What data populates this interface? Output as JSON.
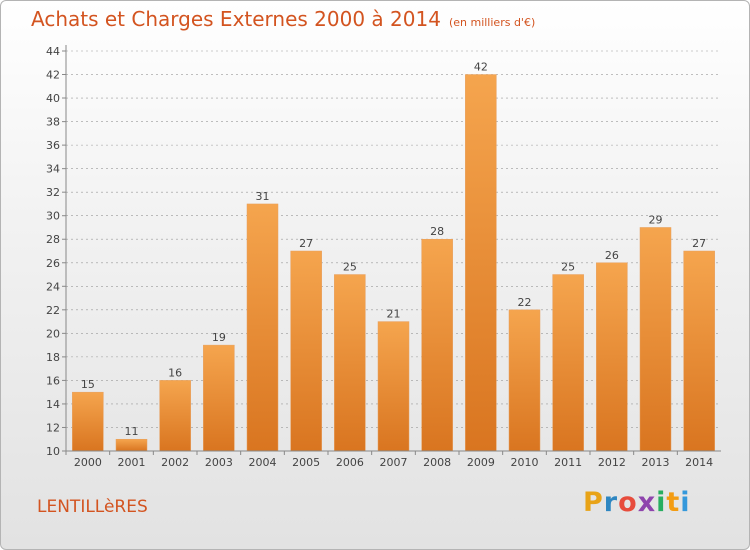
{
  "header": {
    "title": "Achats et Charges Externes 2000 à 2014",
    "subtitle": "(en milliers d'€)"
  },
  "footer": {
    "commune": "LENTILLèRES",
    "logo_letters": [
      "P",
      "r",
      "o",
      "x",
      "i",
      "t",
      "i"
    ],
    "logo_colors": [
      "#e8a317",
      "#2e86c1",
      "#e74c3c",
      "#8e44ad",
      "#27ae60",
      "#f39c12",
      "#3498db"
    ]
  },
  "colors": {
    "title": "#d35420",
    "bar_light": "#f5a54e",
    "bar_dark": "#d97520",
    "axis": "#888888",
    "grid": "#999999"
  },
  "chart_data": {
    "type": "bar",
    "categories": [
      "2000",
      "2001",
      "2002",
      "2003",
      "2004",
      "2005",
      "2006",
      "2007",
      "2008",
      "2009",
      "2010",
      "2011",
      "2012",
      "2013",
      "2014"
    ],
    "values": [
      15,
      11,
      16,
      19,
      31,
      27,
      25,
      21,
      28,
      42,
      22,
      25,
      26,
      29,
      27
    ],
    "title": "Achats et Charges Externes 2000 à 2014",
    "xlabel": "",
    "ylabel": "",
    "ylim": [
      10,
      44
    ],
    "yticks": [
      "10",
      "12",
      "14",
      "16",
      "18",
      "20",
      "22",
      "24",
      "26",
      "28",
      "30",
      "32",
      "34",
      "36",
      "38",
      "40",
      "42",
      "44"
    ],
    "grid": true,
    "legend": "none"
  }
}
